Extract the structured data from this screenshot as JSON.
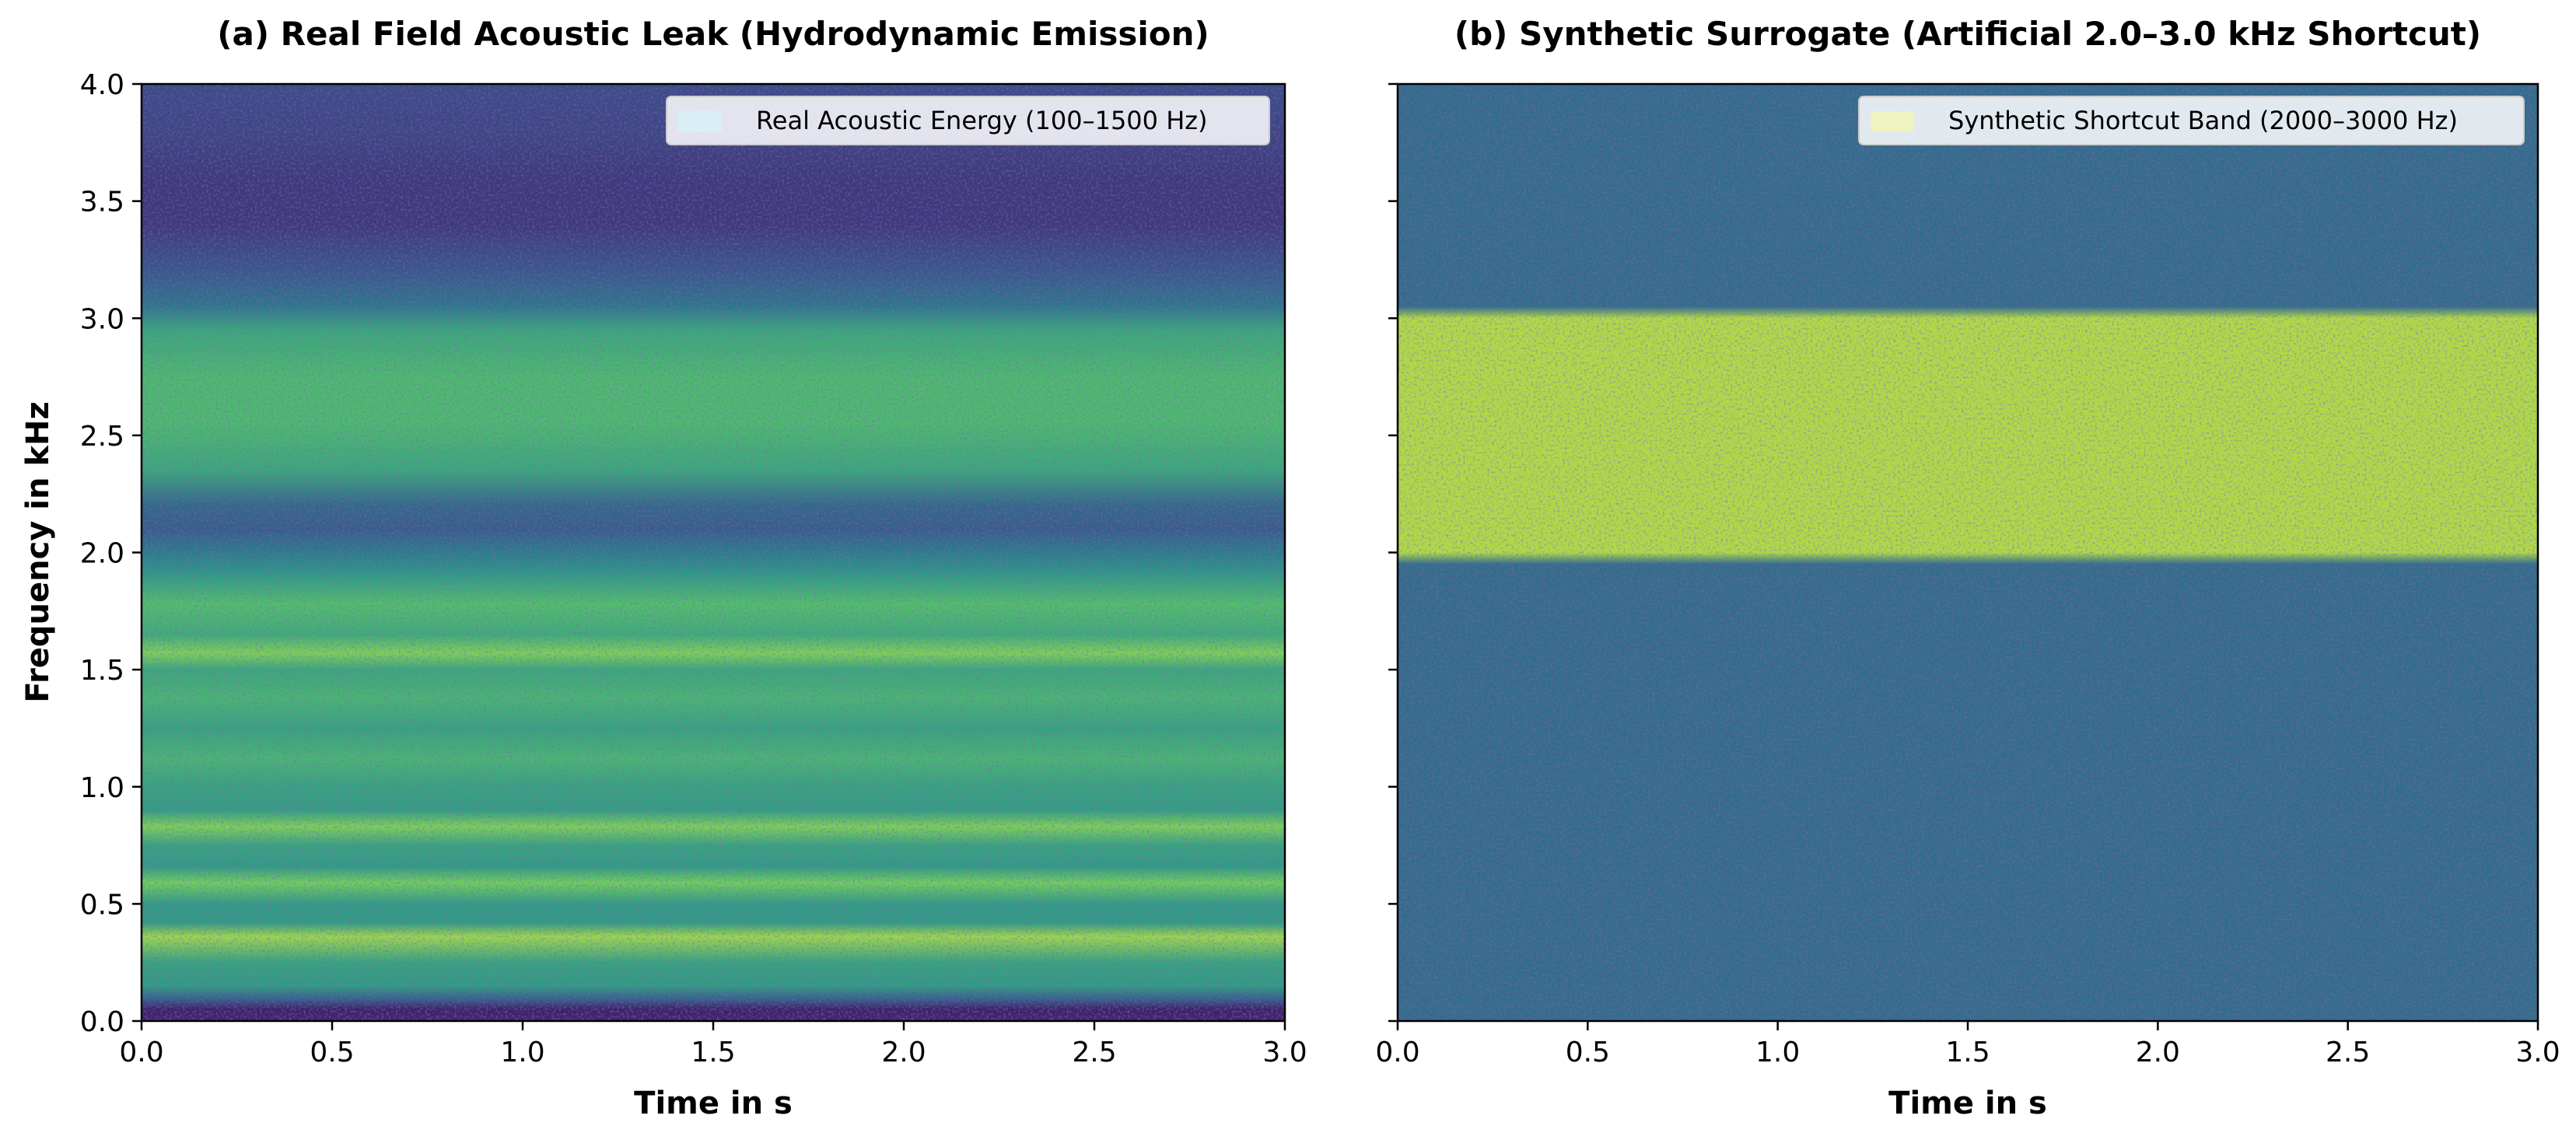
{
  "chart_data": [
    {
      "type": "heatmap",
      "title": "(a) Real Field Acoustic Leak (Hydrodynamic Emission)",
      "xlabel": "Time in s",
      "ylabel": "Frequency in kHz",
      "xlim": [
        0,
        3
      ],
      "ylim": [
        0,
        4
      ],
      "xticks": [
        0.0,
        0.5,
        1.0,
        1.5,
        2.0,
        2.5,
        3.0
      ],
      "xtick_labels": [
        "0.0",
        "0.5",
        "1.0",
        "1.5",
        "2.0",
        "2.5",
        "3.0"
      ],
      "yticks": [
        0.0,
        0.5,
        1.0,
        1.5,
        2.0,
        2.5,
        3.0,
        3.5,
        4.0
      ],
      "ytick_labels": [
        "0.0",
        "0.5",
        "1.0",
        "1.5",
        "2.0",
        "2.5",
        "3.0",
        "3.5",
        "4.0"
      ],
      "colormap": "viridis",
      "legend": {
        "label": "Real Acoustic Energy (100–1500 Hz)",
        "color": "#d8f0f5",
        "location": "upper right"
      },
      "energy_profile": [
        {
          "f": 0.0,
          "level": 0.12
        },
        {
          "f": 0.05,
          "level": 0.1
        },
        {
          "f": 0.09,
          "level": 0.3
        },
        {
          "f": 0.15,
          "level": 0.55
        },
        {
          "f": 0.25,
          "level": 0.58
        },
        {
          "f": 0.36,
          "level": 0.85
        },
        {
          "f": 0.42,
          "level": 0.55
        },
        {
          "f": 0.5,
          "level": 0.55
        },
        {
          "f": 0.59,
          "level": 0.78
        },
        {
          "f": 0.66,
          "level": 0.55
        },
        {
          "f": 0.75,
          "level": 0.58
        },
        {
          "f": 0.83,
          "level": 0.8
        },
        {
          "f": 0.9,
          "level": 0.56
        },
        {
          "f": 1.0,
          "level": 0.58
        },
        {
          "f": 1.12,
          "level": 0.66
        },
        {
          "f": 1.25,
          "level": 0.58
        },
        {
          "f": 1.38,
          "level": 0.66
        },
        {
          "f": 1.5,
          "level": 0.6
        },
        {
          "f": 1.57,
          "level": 0.8
        },
        {
          "f": 1.65,
          "level": 0.62
        },
        {
          "f": 1.78,
          "level": 0.7
        },
        {
          "f": 1.9,
          "level": 0.55
        },
        {
          "f": 2.0,
          "level": 0.42
        },
        {
          "f": 2.1,
          "level": 0.3
        },
        {
          "f": 2.2,
          "level": 0.34
        },
        {
          "f": 2.35,
          "level": 0.6
        },
        {
          "f": 2.55,
          "level": 0.68
        },
        {
          "f": 2.75,
          "level": 0.68
        },
        {
          "f": 2.95,
          "level": 0.6
        },
        {
          "f": 3.05,
          "level": 0.4
        },
        {
          "f": 3.2,
          "level": 0.28
        },
        {
          "f": 3.4,
          "level": 0.18
        },
        {
          "f": 3.6,
          "level": 0.18
        },
        {
          "f": 3.8,
          "level": 0.22
        },
        {
          "f": 4.0,
          "level": 0.24
        }
      ]
    },
    {
      "type": "heatmap",
      "title": "(b) Synthetic Surrogate (Artificial 2.0–3.0 kHz Shortcut)",
      "xlabel": "Time in s",
      "ylabel": "",
      "xlim": [
        0,
        3
      ],
      "ylim": [
        0,
        4
      ],
      "xticks": [
        0.0,
        0.5,
        1.0,
        1.5,
        2.0,
        2.5,
        3.0
      ],
      "xtick_labels": [
        "0.0",
        "0.5",
        "1.0",
        "1.5",
        "2.0",
        "2.5",
        "3.0"
      ],
      "yticks": [
        0.0,
        0.5,
        1.0,
        1.5,
        2.0,
        2.5,
        3.0,
        3.5,
        4.0
      ],
      "ytick_labels": [],
      "colormap": "viridis",
      "legend": {
        "label": "Synthetic Shortcut Band (2000–3000 Hz)",
        "color": "#eef3c0",
        "location": "upper right"
      },
      "energy_profile": [
        {
          "f": 0.0,
          "level": 0.36
        },
        {
          "f": 1.95,
          "level": 0.36
        },
        {
          "f": 2.0,
          "level": 0.88
        },
        {
          "f": 3.0,
          "level": 0.88
        },
        {
          "f": 3.05,
          "level": 0.36
        },
        {
          "f": 4.0,
          "level": 0.36
        }
      ]
    }
  ]
}
